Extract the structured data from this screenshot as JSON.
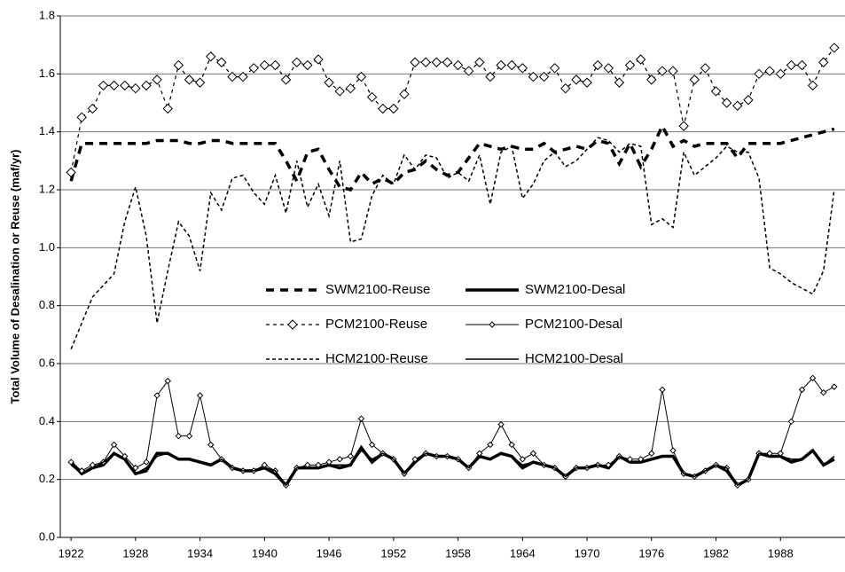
{
  "chart_data": {
    "type": "line",
    "y_label": "Total Volume of Desalination or Reuse (maf/yr)",
    "x": [
      1922,
      1923,
      1924,
      1925,
      1926,
      1927,
      1928,
      1929,
      1930,
      1931,
      1932,
      1933,
      1934,
      1935,
      1936,
      1937,
      1938,
      1939,
      1940,
      1941,
      1942,
      1943,
      1944,
      1945,
      1946,
      1947,
      1948,
      1949,
      1950,
      1951,
      1952,
      1953,
      1954,
      1955,
      1956,
      1957,
      1958,
      1959,
      1960,
      1961,
      1962,
      1963,
      1964,
      1965,
      1966,
      1967,
      1968,
      1969,
      1970,
      1971,
      1972,
      1973,
      1974,
      1975,
      1976,
      1977,
      1978,
      1979,
      1980,
      1981,
      1982,
      1983,
      1984,
      1985,
      1986,
      1987,
      1988,
      1989,
      1990,
      1991,
      1992,
      1993
    ],
    "xlim": [
      1921,
      1994
    ],
    "xticks": [
      1922,
      1928,
      1934,
      1940,
      1946,
      1952,
      1958,
      1964,
      1970,
      1976,
      1982,
      1988
    ],
    "ylim": [
      0,
      1.8
    ],
    "yticks": [
      {
        "value": 0,
        "label": "0.0"
      },
      0.2,
      0.4,
      0.6,
      0.8,
      {
        "value": 1,
        "label": "1.0"
      },
      1.2,
      1.4,
      1.6,
      1.8
    ],
    "grid": true,
    "series": [
      {
        "name": "SWM2100-Reuse",
        "color": "#000000",
        "width": 3.5,
        "dash": "9,7",
        "marker": "none",
        "values": [
          1.23,
          1.36,
          1.36,
          1.36,
          1.36,
          1.36,
          1.36,
          1.36,
          1.37,
          1.37,
          1.37,
          1.36,
          1.36,
          1.37,
          1.37,
          1.36,
          1.36,
          1.36,
          1.36,
          1.36,
          1.3,
          1.23,
          1.33,
          1.34,
          1.27,
          1.21,
          1.2,
          1.26,
          1.22,
          1.24,
          1.22,
          1.26,
          1.27,
          1.3,
          1.27,
          1.25,
          1.26,
          1.31,
          1.36,
          1.35,
          1.34,
          1.35,
          1.34,
          1.34,
          1.36,
          1.33,
          1.34,
          1.35,
          1.34,
          1.37,
          1.36,
          1.29,
          1.36,
          1.28,
          1.34,
          1.42,
          1.35,
          1.37,
          1.35,
          1.36,
          1.36,
          1.36,
          1.31,
          1.36,
          1.36,
          1.36,
          1.36,
          1.37,
          1.38,
          1.39,
          1.4,
          1.41
        ]
      },
      {
        "name": "SWM2100-Desal",
        "color": "#000000",
        "width": 3.5,
        "dash": "none",
        "marker": "none",
        "values": [
          0.26,
          0.22,
          0.24,
          0.25,
          0.29,
          0.27,
          0.22,
          0.23,
          0.29,
          0.29,
          0.27,
          0.27,
          0.26,
          0.25,
          0.27,
          0.24,
          0.23,
          0.23,
          0.24,
          0.22,
          0.18,
          0.24,
          0.24,
          0.24,
          0.25,
          0.24,
          0.25,
          0.31,
          0.26,
          0.29,
          0.27,
          0.22,
          0.26,
          0.29,
          0.28,
          0.28,
          0.27,
          0.24,
          0.28,
          0.27,
          0.29,
          0.28,
          0.24,
          0.26,
          0.25,
          0.24,
          0.21,
          0.24,
          0.24,
          0.25,
          0.24,
          0.28,
          0.26,
          0.26,
          0.27,
          0.28,
          0.28,
          0.22,
          0.21,
          0.23,
          0.25,
          0.23,
          0.18,
          0.2,
          0.29,
          0.28,
          0.28,
          0.26,
          0.27,
          0.3,
          0.25,
          0.27
        ]
      },
      {
        "name": "PCM2100-Reuse",
        "color": "#000000",
        "width": 1.2,
        "dash": "4,4",
        "marker": "diamond",
        "values": [
          1.26,
          1.45,
          1.48,
          1.56,
          1.56,
          1.56,
          1.55,
          1.56,
          1.58,
          1.48,
          1.63,
          1.58,
          1.57,
          1.66,
          1.64,
          1.59,
          1.59,
          1.62,
          1.63,
          1.63,
          1.58,
          1.64,
          1.63,
          1.65,
          1.57,
          1.54,
          1.55,
          1.59,
          1.52,
          1.48,
          1.48,
          1.53,
          1.64,
          1.64,
          1.64,
          1.64,
          1.63,
          1.61,
          1.64,
          1.59,
          1.63,
          1.63,
          1.62,
          1.59,
          1.59,
          1.62,
          1.55,
          1.58,
          1.57,
          1.63,
          1.62,
          1.57,
          1.63,
          1.65,
          1.58,
          1.61,
          1.61,
          1.42,
          1.58,
          1.62,
          1.54,
          1.5,
          1.49,
          1.51,
          1.6,
          1.61,
          1.6,
          1.63,
          1.63,
          1.56,
          1.64,
          1.69
        ]
      },
      {
        "name": "PCM2100-Desal",
        "color": "#000000",
        "width": 1,
        "dash": "none",
        "marker": "small-diamond",
        "values": [
          0.26,
          0.23,
          0.25,
          0.26,
          0.32,
          0.28,
          0.24,
          0.26,
          0.49,
          0.54,
          0.35,
          0.35,
          0.49,
          0.32,
          0.27,
          0.24,
          0.23,
          0.23,
          0.25,
          0.23,
          0.18,
          0.24,
          0.25,
          0.25,
          0.26,
          0.27,
          0.28,
          0.41,
          0.32,
          0.29,
          0.27,
          0.22,
          0.27,
          0.29,
          0.28,
          0.28,
          0.27,
          0.24,
          0.29,
          0.32,
          0.39,
          0.32,
          0.27,
          0.29,
          0.25,
          0.24,
          0.21,
          0.24,
          0.24,
          0.25,
          0.25,
          0.28,
          0.27,
          0.27,
          0.29,
          0.51,
          0.3,
          0.22,
          0.21,
          0.23,
          0.25,
          0.24,
          0.18,
          0.2,
          0.29,
          0.29,
          0.29,
          0.4,
          0.51,
          0.55,
          0.5,
          0.52
        ]
      },
      {
        "name": "HCM2100-Reuse",
        "color": "#000000",
        "width": 1.5,
        "dash": "4,3",
        "marker": "none",
        "values": [
          0.65,
          0.74,
          0.83,
          0.87,
          0.91,
          1.09,
          1.21,
          1.04,
          0.74,
          0.92,
          1.09,
          1.04,
          0.92,
          1.19,
          1.13,
          1.24,
          1.25,
          1.19,
          1.15,
          1.25,
          1.12,
          1.3,
          1.14,
          1.22,
          1.11,
          1.3,
          1.02,
          1.03,
          1.18,
          1.25,
          1.22,
          1.32,
          1.27,
          1.32,
          1.31,
          1.24,
          1.26,
          1.23,
          1.32,
          1.15,
          1.33,
          1.35,
          1.17,
          1.22,
          1.3,
          1.33,
          1.28,
          1.3,
          1.34,
          1.38,
          1.37,
          1.33,
          1.36,
          1.35,
          1.08,
          1.1,
          1.07,
          1.33,
          1.25,
          1.28,
          1.31,
          1.35,
          1.33,
          1.33,
          1.24,
          0.93,
          0.91,
          0.88,
          0.86,
          0.84,
          0.92,
          1.2
        ]
      },
      {
        "name": "HCM2100-Desal",
        "color": "#000000",
        "width": 1.6,
        "dash": "none",
        "marker": "none",
        "values": [
          0.25,
          0.22,
          0.24,
          0.26,
          0.29,
          0.27,
          0.22,
          0.24,
          0.28,
          0.29,
          0.27,
          0.27,
          0.26,
          0.25,
          0.27,
          0.24,
          0.23,
          0.23,
          0.24,
          0.23,
          0.18,
          0.24,
          0.24,
          0.24,
          0.25,
          0.25,
          0.25,
          0.3,
          0.27,
          0.29,
          0.27,
          0.22,
          0.26,
          0.29,
          0.28,
          0.28,
          0.27,
          0.24,
          0.28,
          0.27,
          0.29,
          0.28,
          0.25,
          0.26,
          0.25,
          0.24,
          0.21,
          0.24,
          0.24,
          0.25,
          0.24,
          0.28,
          0.26,
          0.26,
          0.27,
          0.28,
          0.28,
          0.22,
          0.21,
          0.23,
          0.25,
          0.24,
          0.18,
          0.2,
          0.29,
          0.28,
          0.28,
          0.27,
          0.27,
          0.3,
          0.25,
          0.28
        ]
      }
    ]
  }
}
